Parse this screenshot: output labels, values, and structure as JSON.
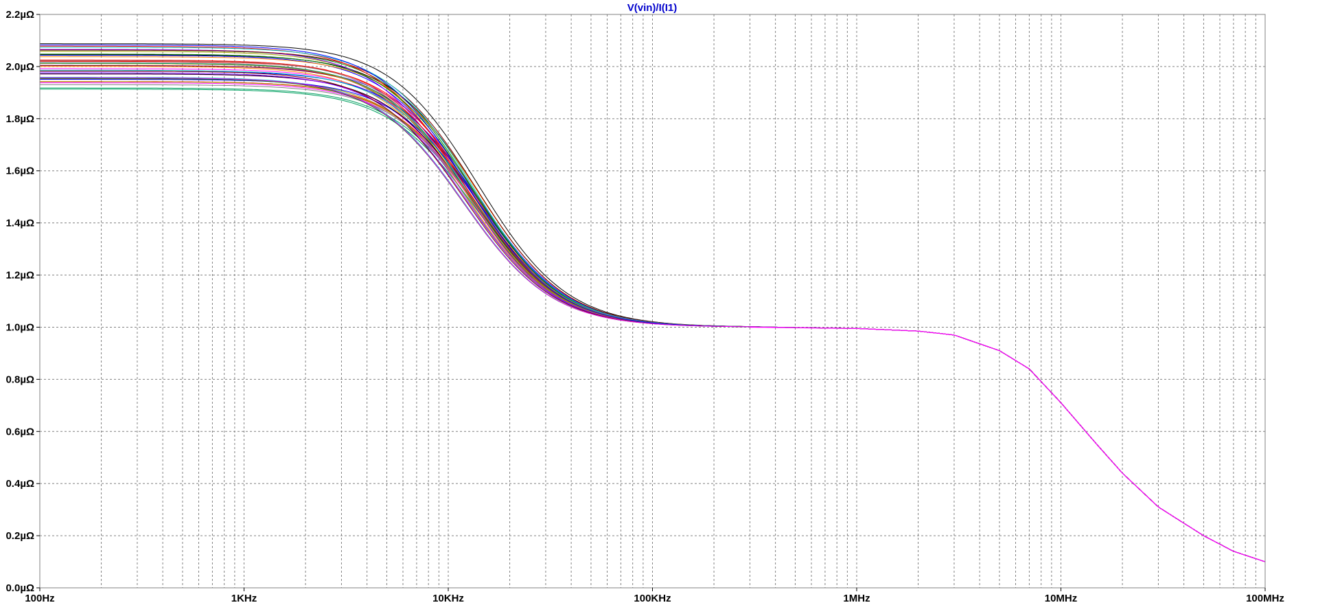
{
  "chart_data": {
    "type": "line",
    "title": "V(vin)/I(I1)",
    "xscale": "log",
    "xlim_hz": [
      100,
      100000000
    ],
    "ylim_uohm": [
      0.0,
      2.2
    ],
    "x_ticks": [
      {
        "value": 100,
        "label": "100Hz"
      },
      {
        "value": 1000,
        "label": "1KHz"
      },
      {
        "value": 10000,
        "label": "10KHz"
      },
      {
        "value": 100000,
        "label": "100KHz"
      },
      {
        "value": 1000000,
        "label": "1MHz"
      },
      {
        "value": 10000000,
        "label": "10MHz"
      },
      {
        "value": 100000000,
        "label": "100MHz"
      }
    ],
    "y_ticks": [
      {
        "value": 0.0,
        "label": "0.0µΩ"
      },
      {
        "value": 0.2,
        "label": "0.2µΩ"
      },
      {
        "value": 0.4,
        "label": "0.4µΩ"
      },
      {
        "value": 0.6,
        "label": "0.6µΩ"
      },
      {
        "value": 0.8,
        "label": "0.8µΩ"
      },
      {
        "value": 1.0,
        "label": "1.0µΩ"
      },
      {
        "value": 1.2,
        "label": "1.2µΩ"
      },
      {
        "value": 1.4,
        "label": "1.4µΩ"
      },
      {
        "value": 1.6,
        "label": "1.6µΩ"
      },
      {
        "value": 1.8,
        "label": "1.8µΩ"
      },
      {
        "value": 2.0,
        "label": "2.0µΩ"
      },
      {
        "value": 2.2,
        "label": "2.2µΩ"
      }
    ],
    "grid": true,
    "series_count": 40,
    "low_freq_plateau_range_uohm": [
      1.91,
      2.09
    ],
    "mid_plateau_uohm": 1.0,
    "end_value_uohm": 0.1,
    "shared_tail": {
      "x_hz": [
        300000,
        1000000,
        2000000,
        3000000,
        5000000,
        7000000,
        10000000,
        15000000,
        20000000,
        30000000,
        50000000,
        70000000,
        100000000
      ],
      "y_uohm": [
        1.0,
        0.995,
        0.985,
        0.97,
        0.91,
        0.84,
        0.71,
        0.55,
        0.44,
        0.31,
        0.2,
        0.14,
        0.1
      ]
    },
    "mid_knee": {
      "x_hz": [
        3000,
        5000,
        8000,
        10000,
        15000,
        20000,
        30000,
        50000,
        100000,
        200000,
        300000
      ],
      "y_uohm_at_plateau_2": [
        1.99,
        1.97,
        1.88,
        1.8,
        1.62,
        1.47,
        1.3,
        1.15,
        1.04,
        1.01,
        1.0
      ]
    },
    "colors": [
      "#ff0000",
      "#0000ff",
      "#008000",
      "#ff00ff",
      "#00c0c0",
      "#a0a000",
      "#000000",
      "#ff8000",
      "#8000ff",
      "#800000",
      "#00a060",
      "#808080"
    ],
    "tail_color": "#ff00ff",
    "title_color": "#0000cc",
    "grid_color": "#808080"
  }
}
